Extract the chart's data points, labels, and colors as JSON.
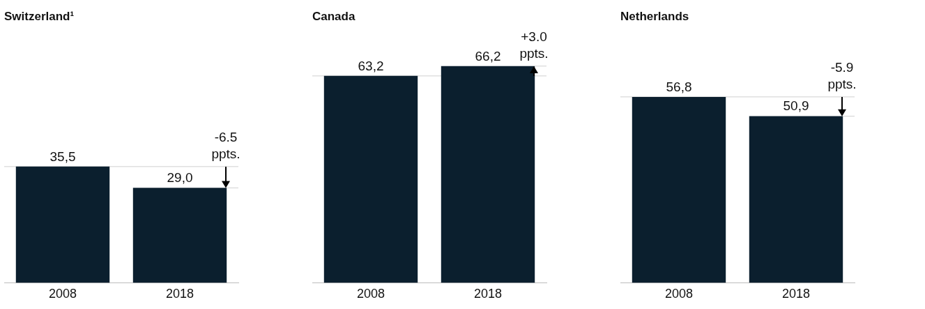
{
  "chart_data": [
    {
      "type": "bar",
      "title": "Switzerland¹",
      "categories": [
        "2008",
        "2018"
      ],
      "values": [
        35.5,
        29.0
      ],
      "value_labels": [
        "35,5",
        "29,0"
      ],
      "color": "#0b1f2e",
      "tick_labels": "x",
      "grid": false,
      "legend": false,
      "ref_lines": [
        {
          "axis": "y",
          "value": 35.5,
          "color": "#d0d0d0"
        }
      ],
      "annotations": [
        "-6.5 ppts."
      ]
    },
    {
      "type": "bar",
      "title": "Canada",
      "categories": [
        "2008",
        "2018"
      ],
      "values": [
        63.2,
        66.2
      ],
      "value_labels": [
        "63,2",
        "66,2"
      ],
      "color": "#0b1f2e",
      "tick_labels": "x",
      "grid": false,
      "legend": false,
      "ref_lines": [
        {
          "axis": "y",
          "value": 63.2,
          "color": "#d0d0d0"
        }
      ],
      "annotations": [
        "+3.0 ppts."
      ]
    },
    {
      "type": "bar",
      "title": "Netherlands",
      "categories": [
        "2008",
        "2018"
      ],
      "values": [
        56.8,
        50.9
      ],
      "value_labels": [
        "56,8",
        "50,9"
      ],
      "color": "#0b1f2e",
      "tick_labels": "x",
      "grid": false,
      "legend": false,
      "ref_lines": [
        {
          "axis": "y",
          "value": 56.8,
          "color": "#d0d0d0"
        }
      ],
      "annotations": [
        "-5.9 ppts."
      ]
    }
  ]
}
